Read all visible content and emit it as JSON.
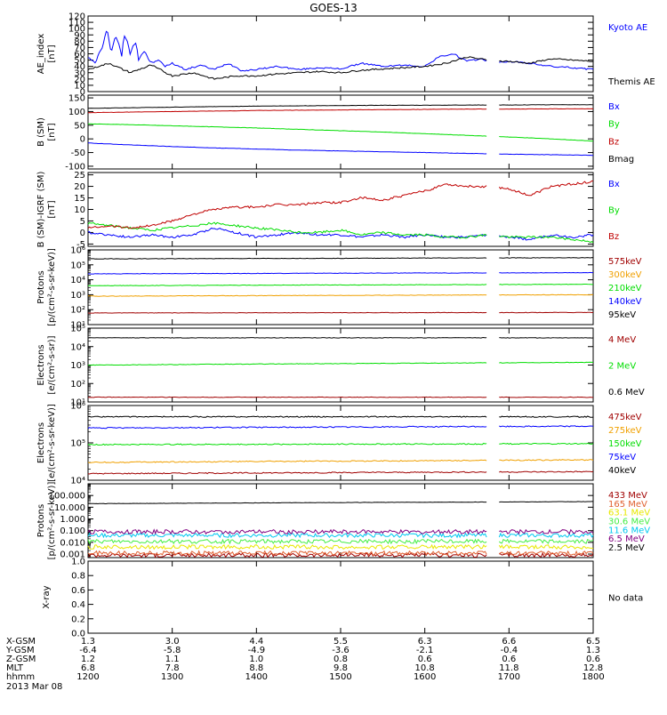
{
  "title": "GOES-13",
  "date_label": "2013 Mar 08",
  "x_axis": {
    "times": [
      "1200",
      "1300",
      "1400",
      "1500",
      "1600",
      "1700",
      "1800"
    ],
    "rows": [
      {
        "label": "X-GSM",
        "values": [
          "1.3",
          "3.0",
          "4.4",
          "5.5",
          "6.3",
          "6.6",
          "6.5"
        ]
      },
      {
        "label": "Y-GSM",
        "values": [
          "-6.4",
          "-5.8",
          "-4.9",
          "-3.6",
          "-2.1",
          "-0.4",
          "1.3"
        ]
      },
      {
        "label": "Z-GSM",
        "values": [
          "1.2",
          "1.1",
          "1.0",
          "0.8",
          "0.6",
          "0.6",
          "0.6"
        ]
      },
      {
        "label": "MLT",
        "values": [
          "6.8",
          "7.8",
          "8.8",
          "9.8",
          "10.8",
          "11.8",
          "12.8"
        ]
      },
      {
        "label": "hhmm",
        "values": [
          "1200",
          "1300",
          "1400",
          "1500",
          "1600",
          "1700",
          "1800"
        ]
      }
    ]
  },
  "colors": {
    "black": "#000000",
    "blue": "#0000ff",
    "red": "#c00000",
    "green": "#00dd00",
    "orange": "#f0a000",
    "darkred": "#a00000",
    "salmon": "#e06030",
    "yellow": "#e8e800",
    "lime": "#44ee44",
    "cyan": "#00c8f0",
    "purple": "#800080",
    "brown": "#8b0000"
  },
  "chart_data": [
    {
      "type": "line",
      "ylabel": "AE_index\n[nT]",
      "yscale": "linear",
      "ylim": [
        0,
        120
      ],
      "ytick_values": [
        0,
        10,
        20,
        30,
        40,
        50,
        60,
        70,
        80,
        90,
        100,
        110,
        120
      ],
      "ytick_labels": [
        "0",
        "10",
        "20",
        "30",
        "40",
        "50",
        "60",
        "70",
        "80",
        "90",
        "100",
        "110",
        "120"
      ],
      "series": [
        {
          "name": "Kyoto AE",
          "color": "blue",
          "x": [
            1200,
            1205,
            1210,
            1214,
            1216,
            1220,
            1224,
            1226,
            1230,
            1234,
            1236,
            1240,
            1245,
            1250,
            1255,
            1300,
            1310,
            1320,
            1330,
            1340,
            1350,
            1400,
            1415,
            1430,
            1445,
            1500,
            1515,
            1530,
            1545,
            1600,
            1610,
            1620,
            1630,
            1640,
            1650,
            1700,
            1715,
            1730,
            1745,
            1800
          ],
          "y": [
            55,
            45,
            70,
            103,
            60,
            90,
            55,
            92,
            60,
            80,
            50,
            65,
            45,
            50,
            40,
            45,
            35,
            42,
            35,
            45,
            33,
            35,
            40,
            35,
            38,
            36,
            45,
            40,
            42,
            40,
            55,
            60,
            48,
            52,
            45,
            48,
            45,
            40,
            38,
            35
          ]
        },
        {
          "name": "Themis AE",
          "color": "black",
          "x": [
            1200,
            1215,
            1230,
            1245,
            1300,
            1315,
            1330,
            1345,
            1400,
            1415,
            1430,
            1445,
            1500,
            1515,
            1530,
            1545,
            1600,
            1615,
            1630,
            1645,
            1700,
            1715,
            1730,
            1745,
            1800
          ],
          "y": [
            35,
            45,
            30,
            42,
            25,
            30,
            20,
            25,
            25,
            28,
            30,
            32,
            30,
            34,
            36,
            38,
            40,
            45,
            55,
            50,
            48,
            45,
            52,
            50,
            48
          ]
        }
      ]
    },
    {
      "type": "line",
      "ylabel": "B (SM)\n[nT]",
      "yscale": "linear",
      "ylim": [
        -110,
        160
      ],
      "ytick_values": [
        -100,
        -50,
        0,
        50,
        100,
        150
      ],
      "ytick_labels": [
        "-100",
        "-50",
        "0",
        "50",
        "100",
        "150"
      ],
      "series": [
        {
          "name": "Bx",
          "color": "blue",
          "x": [
            1200,
            1230,
            1300,
            1330,
            1400,
            1430,
            1500,
            1530,
            1600,
            1630,
            1700,
            1730,
            1800
          ],
          "y": [
            -15,
            -22,
            -28,
            -33,
            -37,
            -41,
            -44,
            -47,
            -50,
            -53,
            -56,
            -58,
            -60
          ]
        },
        {
          "name": "By",
          "color": "green",
          "x": [
            1200,
            1230,
            1300,
            1330,
            1400,
            1430,
            1500,
            1530,
            1600,
            1630,
            1700,
            1730,
            1800
          ],
          "y": [
            55,
            52,
            48,
            44,
            40,
            35,
            30,
            25,
            19,
            13,
            7,
            0,
            -8
          ]
        },
        {
          "name": "Bz",
          "color": "red",
          "x": [
            1200,
            1230,
            1300,
            1330,
            1400,
            1430,
            1500,
            1530,
            1600,
            1630,
            1700,
            1730,
            1800
          ],
          "y": [
            96,
            98,
            100,
            102,
            104,
            105,
            106,
            107,
            108,
            109,
            109,
            110,
            110
          ]
        },
        {
          "name": "Bmag",
          "color": "black",
          "x": [
            1200,
            1230,
            1300,
            1330,
            1400,
            1430,
            1500,
            1530,
            1600,
            1630,
            1700,
            1730,
            1800
          ],
          "y": [
            112,
            114,
            116,
            118,
            120,
            121,
            122,
            123,
            123,
            124,
            124,
            125,
            125
          ]
        }
      ]
    },
    {
      "type": "line",
      "ylabel": "B (SM)-IGRF (SM)\n[nT]",
      "yscale": "linear",
      "ylim": [
        -6,
        26
      ],
      "ytick_values": [
        -5,
        0,
        5,
        10,
        15,
        20,
        25
      ],
      "ytick_labels": [
        "-5",
        "0",
        "5",
        "10",
        "15",
        "20",
        "25"
      ],
      "series": [
        {
          "name": "Bx",
          "color": "blue",
          "x": [
            1200,
            1215,
            1230,
            1245,
            1300,
            1315,
            1330,
            1345,
            1400,
            1415,
            1430,
            1445,
            1500,
            1515,
            1530,
            1545,
            1600,
            1615,
            1630,
            1645,
            1700,
            1715,
            1730,
            1745,
            1800
          ],
          "y": [
            0,
            -1,
            -2,
            -1,
            -2,
            -1,
            2,
            0,
            -2,
            -1,
            0,
            -1,
            -1,
            -2,
            -1,
            -2,
            -1,
            -2,
            -2,
            -1,
            -2,
            -3,
            -1,
            -2,
            -1
          ]
        },
        {
          "name": "By",
          "color": "green",
          "x": [
            1200,
            1215,
            1230,
            1245,
            1300,
            1315,
            1330,
            1345,
            1400,
            1415,
            1430,
            1445,
            1500,
            1515,
            1530,
            1545,
            1600,
            1615,
            1630,
            1645,
            1700,
            1715,
            1730,
            1745,
            1800
          ],
          "y": [
            4,
            3,
            2,
            1,
            2,
            3,
            4,
            3,
            2,
            1,
            0,
            0,
            1,
            -1,
            0,
            -1,
            -1,
            -2,
            -2,
            -1,
            -2,
            -2,
            -2,
            -3,
            -4
          ]
        },
        {
          "name": "Bz",
          "color": "red",
          "x": [
            1200,
            1215,
            1230,
            1245,
            1300,
            1315,
            1330,
            1345,
            1400,
            1415,
            1430,
            1445,
            1500,
            1515,
            1530,
            1545,
            1600,
            1615,
            1630,
            1645,
            1700,
            1715,
            1730,
            1745,
            1800
          ],
          "y": [
            2,
            3,
            2,
            3,
            5,
            8,
            10,
            11,
            11,
            12,
            12,
            13,
            13,
            15,
            14,
            16,
            18,
            21,
            20,
            20,
            19,
            16,
            20,
            21,
            22
          ]
        }
      ]
    },
    {
      "type": "line",
      "ylabel": "Protons\n[p/(cm²-s-sr-keV)]",
      "yscale": "log",
      "ylim": [
        10,
        1000000
      ],
      "ytick_values": [
        10,
        100,
        1000,
        10000,
        100000,
        1000000
      ],
      "ytick_labels": [
        "10¹",
        "10²",
        "10³",
        "10⁴",
        "10⁵",
        "10⁶"
      ],
      "series": [
        {
          "name": "575keV",
          "color": "darkred",
          "x": [
            1200,
            1800
          ],
          "y": [
            60,
            65
          ]
        },
        {
          "name": "300keV",
          "color": "orange",
          "x": [
            1200,
            1800
          ],
          "y": [
            800,
            1000
          ]
        },
        {
          "name": "210keV",
          "color": "green",
          "x": [
            1200,
            1800
          ],
          "y": [
            4000,
            5000
          ]
        },
        {
          "name": "140keV",
          "color": "blue",
          "x": [
            1200,
            1800
          ],
          "y": [
            25000,
            30000
          ]
        },
        {
          "name": "95keV",
          "color": "black",
          "x": [
            1200,
            1800
          ],
          "y": [
            250000,
            300000
          ]
        }
      ]
    },
    {
      "type": "line",
      "ylabel": "Electrons\n[e/(cm²-s-sr)]",
      "yscale": "log",
      "ylim": [
        10,
        100000
      ],
      "ytick_values": [
        10,
        100,
        1000,
        10000,
        100000
      ],
      "ytick_labels": [
        "10¹",
        "10²",
        "10³",
        "10⁴",
        "10⁵"
      ],
      "series": [
        {
          "name": "4 MeV",
          "color": "darkred",
          "x": [
            1200,
            1800
          ],
          "y": [
            18,
            18
          ]
        },
        {
          "name": "2 MeV",
          "color": "green",
          "x": [
            1200,
            1800
          ],
          "y": [
            1000,
            1400
          ]
        },
        {
          "name": "0.6 MeV",
          "color": "black",
          "x": [
            1200,
            1800
          ],
          "y": [
            30000,
            30000
          ]
        }
      ]
    },
    {
      "type": "line",
      "ylabel": "Electrons\n[e/(cm²-s-sr-keV)]",
      "yscale": "log",
      "ylim": [
        10000,
        1000000
      ],
      "ytick_values": [
        10000,
        100000,
        1000000
      ],
      "ytick_labels": [
        "10⁴",
        "10⁵",
        "10⁶"
      ],
      "series": [
        {
          "name": "475keV",
          "color": "darkred",
          "x": [
            1200,
            1800
          ],
          "y": [
            15000,
            17000
          ]
        },
        {
          "name": "275keV",
          "color": "orange",
          "x": [
            1200,
            1800
          ],
          "y": [
            30000,
            35000
          ]
        },
        {
          "name": "150keV",
          "color": "green",
          "x": [
            1200,
            1800
          ],
          "y": [
            90000,
            95000
          ]
        },
        {
          "name": "75keV",
          "color": "blue",
          "x": [
            1200,
            1800
          ],
          "y": [
            250000,
            280000
          ]
        },
        {
          "name": "40keV",
          "color": "black",
          "x": [
            1200,
            1800
          ],
          "y": [
            500000,
            500000
          ]
        }
      ]
    },
    {
      "type": "line",
      "ylabel": "Protons\n[p/(cm²-s-sr-keV)]",
      "yscale": "log",
      "ylim": [
        0.0005,
        1000
      ],
      "ytick_values": [
        0.001,
        0.01,
        0.1,
        1,
        10,
        100
      ],
      "ytick_labels": [
        "0.001",
        "0.010",
        "0.100",
        "1.000",
        "10.000",
        "100.000"
      ],
      "series": [
        {
          "name": "433 MeV",
          "color": "darkred",
          "x": [
            1200,
            1800
          ],
          "y": [
            0.0008,
            0.0008
          ]
        },
        {
          "name": "165 MeV",
          "color": "salmon",
          "x": [
            1200,
            1800
          ],
          "y": [
            0.0012,
            0.0012
          ]
        },
        {
          "name": "63.1 MeV",
          "color": "yellow",
          "x": [
            1200,
            1800
          ],
          "y": [
            0.004,
            0.004
          ]
        },
        {
          "name": "30.6 MeV",
          "color": "lime",
          "x": [
            1200,
            1800
          ],
          "y": [
            0.012,
            0.012
          ]
        },
        {
          "name": "11.6 MeV",
          "color": "cyan",
          "x": [
            1200,
            1800
          ],
          "y": [
            0.04,
            0.04
          ]
        },
        {
          "name": "6.5 MeV",
          "color": "purple",
          "x": [
            1200,
            1800
          ],
          "y": [
            0.08,
            0.08
          ]
        },
        {
          "name": "2.5 MeV",
          "color": "black",
          "x": [
            1200,
            1800
          ],
          "y": [
            20,
            30
          ]
        }
      ]
    },
    {
      "type": "line",
      "ylabel": "X-ray",
      "yscale": "linear",
      "ylim": [
        0,
        1
      ],
      "ytick_values": [
        0,
        0.2,
        0.4,
        0.6,
        0.8,
        1.0
      ],
      "ytick_labels": [
        "0.0",
        "0.2",
        "0.4",
        "0.6",
        "0.8",
        "1.0"
      ],
      "note": "No data",
      "series": []
    }
  ]
}
